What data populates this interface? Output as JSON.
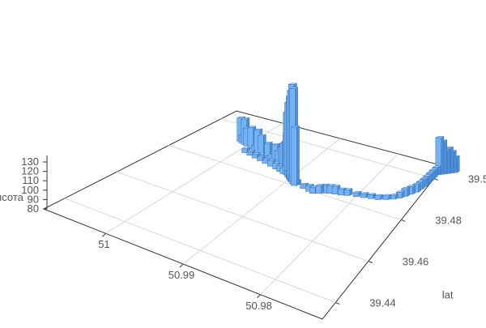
{
  "chart_data": {
    "type": "bar3d",
    "title": "",
    "axes": {
      "x": {
        "label": "",
        "ticks": [
          "50.98",
          "50.99",
          "51"
        ],
        "range": [
          50.972,
          51.008
        ]
      },
      "y": {
        "label": "lat",
        "ticks": [
          "39.44",
          "39.46",
          "39.48",
          "39.5"
        ],
        "range": [
          39.432,
          39.506
        ]
      },
      "z": {
        "label": "высота",
        "ticks": [
          "80",
          "90",
          "100",
          "110",
          "120",
          "130"
        ],
        "range": [
          80,
          130
        ]
      }
    },
    "grid": true,
    "colors": {
      "bar_front": "#74b2f2",
      "bar_top": "#a9d0f7",
      "bar_side": "#4f8fd8",
      "bar_edge": "#2f6fbf",
      "axis": "#333333",
      "grid": "#d9d9d9"
    },
    "points": [
      [
        51.0015,
        39.492,
        92
      ],
      [
        51.001,
        39.4915,
        84
      ],
      [
        51.0005,
        39.4912,
        93
      ],
      [
        51.0,
        39.4908,
        89
      ],
      [
        50.999,
        39.49,
        91
      ],
      [
        50.9982,
        39.4895,
        83
      ],
      [
        50.9975,
        39.4888,
        92
      ],
      [
        50.9968,
        39.4885,
        90
      ],
      [
        50.9955,
        39.4878,
        88
      ],
      [
        50.9948,
        39.487,
        83
      ],
      [
        50.9938,
        39.4865,
        90
      ],
      [
        50.9932,
        39.486,
        88
      ],
      [
        50.9925,
        39.4855,
        91
      ],
      [
        50.992,
        39.485,
        94
      ],
      [
        50.9915,
        39.4845,
        96
      ],
      [
        50.9912,
        39.484,
        101
      ],
      [
        50.991,
        39.4835,
        112
      ],
      [
        50.9906,
        39.483,
        118
      ],
      [
        50.9902,
        39.4825,
        122
      ],
      [
        50.9898,
        39.4818,
        126
      ],
      [
        50.9894,
        39.4812,
        130
      ],
      [
        50.989,
        39.4805,
        129
      ],
      [
        50.9886,
        39.48,
        110
      ],
      [
        50.999,
        39.4875,
        82
      ],
      [
        50.998,
        39.487,
        82
      ],
      [
        50.997,
        39.4865,
        82
      ],
      [
        50.996,
        39.486,
        82
      ],
      [
        50.995,
        39.4855,
        82
      ],
      [
        50.994,
        39.485,
        83
      ],
      [
        50.993,
        39.4845,
        83
      ],
      [
        50.9922,
        39.484,
        83
      ],
      [
        50.9915,
        39.4835,
        83
      ],
      [
        50.9905,
        39.4828,
        83
      ],
      [
        50.99,
        39.482,
        82
      ],
      [
        50.9895,
        39.4812,
        82
      ],
      [
        50.9885,
        39.4805,
        82
      ],
      [
        50.9872,
        39.48,
        82
      ],
      [
        50.9862,
        39.4795,
        83
      ],
      [
        50.9855,
        39.4792,
        83
      ],
      [
        50.9848,
        39.48,
        84
      ],
      [
        50.9842,
        39.4808,
        84
      ],
      [
        50.9835,
        39.4814,
        84
      ],
      [
        50.9828,
        39.4818,
        84
      ],
      [
        50.982,
        39.4822,
        83
      ],
      [
        50.9812,
        39.4828,
        83
      ],
      [
        50.98,
        39.4835,
        82
      ],
      [
        50.979,
        39.484,
        82
      ],
      [
        50.978,
        39.4845,
        82
      ],
      [
        50.977,
        39.485,
        82
      ],
      [
        50.976,
        39.486,
        82
      ],
      [
        50.9752,
        39.487,
        82
      ],
      [
        50.9745,
        39.4882,
        83
      ],
      [
        50.974,
        39.4895,
        84
      ],
      [
        50.9735,
        39.491,
        84
      ],
      [
        50.973,
        39.4925,
        84
      ],
      [
        50.9728,
        39.494,
        84
      ],
      [
        50.9726,
        39.4955,
        84
      ],
      [
        50.9725,
        39.497,
        84
      ],
      [
        50.9724,
        39.4985,
        84
      ],
      [
        50.9723,
        39.5,
        84
      ],
      [
        50.9722,
        39.5015,
        84
      ],
      [
        50.9718,
        39.502,
        99
      ],
      [
        50.9714,
        39.5025,
        97
      ],
      [
        50.971,
        39.503,
        92
      ],
      [
        50.9706,
        39.5035,
        93
      ],
      [
        50.9702,
        39.504,
        91
      ],
      [
        50.9698,
        39.5045,
        88
      ]
    ]
  }
}
